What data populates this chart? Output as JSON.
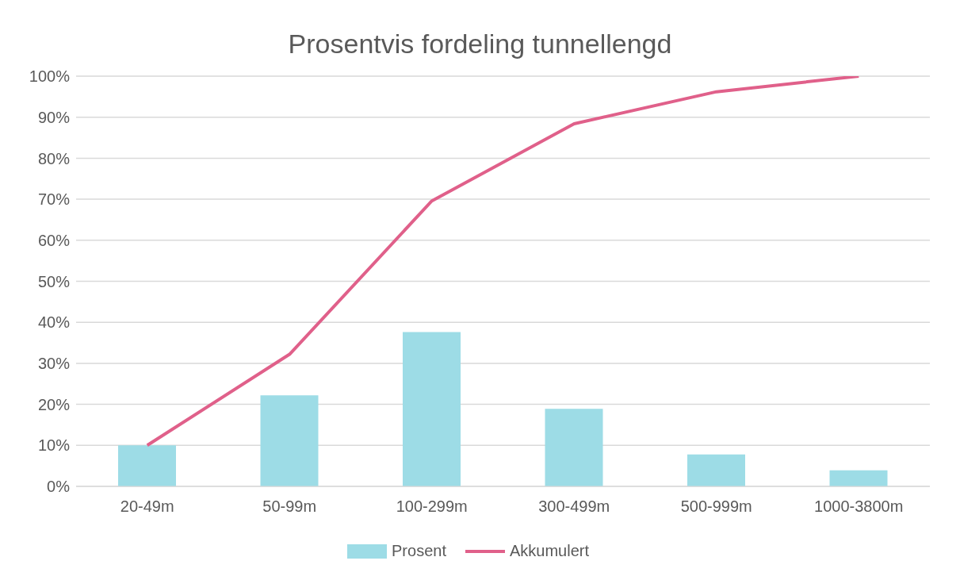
{
  "chart_data": {
    "type": "bar",
    "title": "Prosentvis fordeling tunnellengd",
    "categories": [
      "20-49m",
      "50-99m",
      "100-299m",
      "300-499m",
      "500-999m",
      "1000-3800m"
    ],
    "series": [
      {
        "name": "Prosent",
        "color": "#9ddce6",
        "values": [
          10,
          22.2,
          37.6,
          18.9,
          7.8,
          3.9
        ]
      },
      {
        "name": "Akkumulert",
        "type": "line",
        "color": "#e0608a",
        "values": [
          10,
          32.2,
          69.6,
          88.4,
          96.2,
          100
        ]
      }
    ],
    "ylim": [
      0,
      100
    ],
    "yticks": [
      {
        "value": 0,
        "label": "0%"
      },
      {
        "value": 10,
        "label": "10%"
      },
      {
        "value": 20,
        "label": "20%"
      },
      {
        "value": 30,
        "label": "30%"
      },
      {
        "value": 40,
        "label": "40%"
      },
      {
        "value": 50,
        "label": "50%"
      },
      {
        "value": 60,
        "label": "60%"
      },
      {
        "value": 70,
        "label": "70%"
      },
      {
        "value": 80,
        "label": "80%"
      },
      {
        "value": 90,
        "label": "90%"
      },
      {
        "value": 100,
        "label": "100%"
      }
    ],
    "grid": "y",
    "legend": "bottom",
    "marker": "none",
    "line_style": "solid"
  }
}
